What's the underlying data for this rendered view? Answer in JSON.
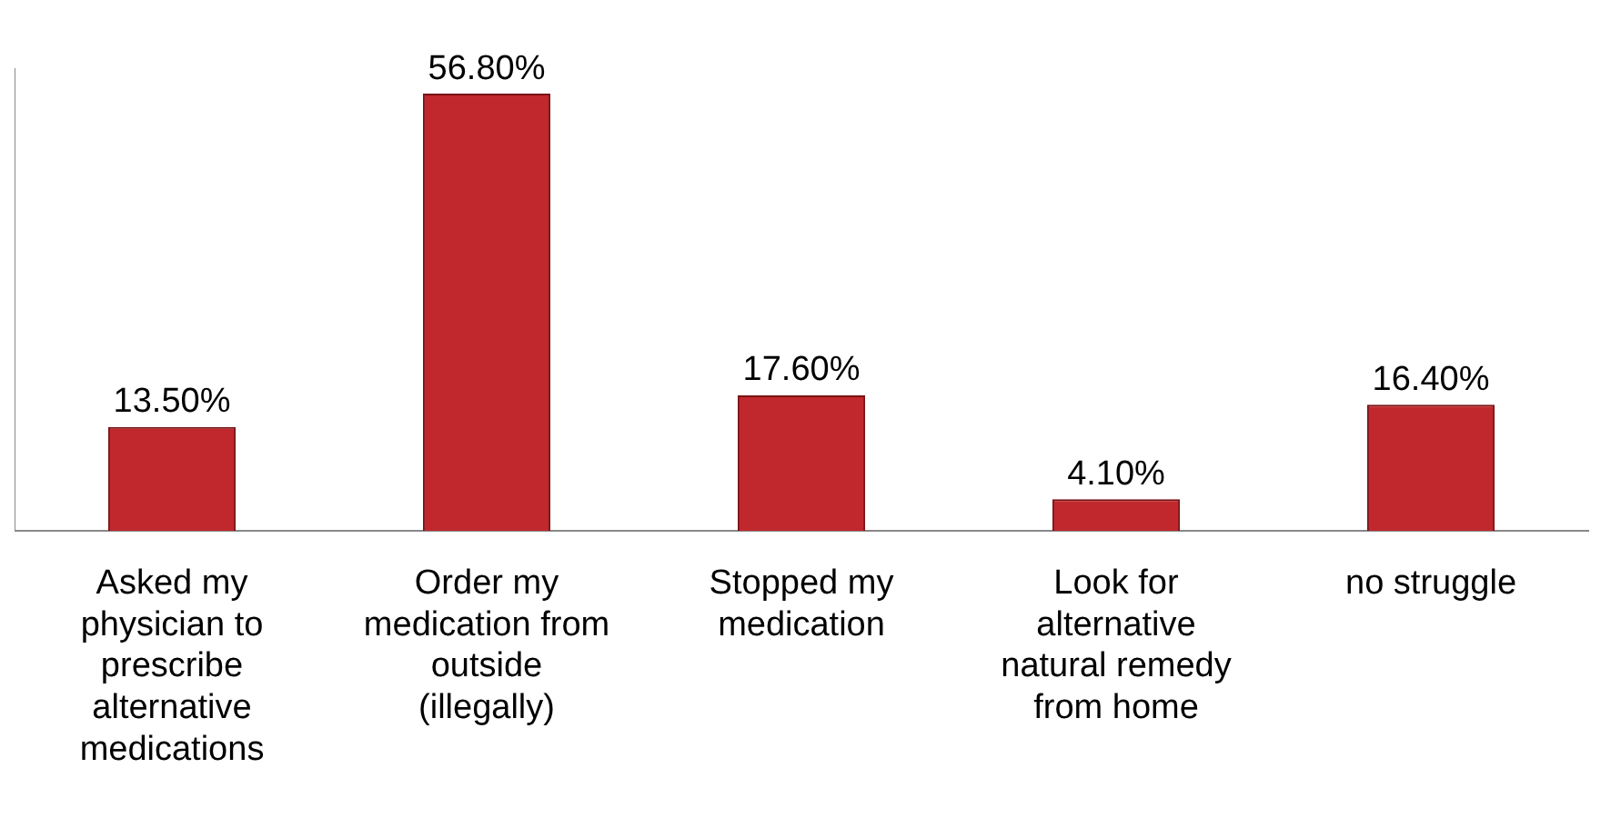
{
  "chart_data": {
    "type": "bar",
    "categories": [
      "Asked my physician to prescribe alternative medications",
      "Order my medication from outside (illegally)",
      "Stopped my medication",
      "Look for alternative natural remedy from home",
      "no struggle"
    ],
    "values": [
      13.5,
      56.8,
      17.6,
      4.1,
      16.4
    ],
    "value_labels": [
      "13.50%",
      "56.80%",
      "17.60%",
      "4.10%",
      "16.40%"
    ],
    "color": "#c0282d",
    "grid": false,
    "legend": false,
    "tick_labels": "x"
  }
}
